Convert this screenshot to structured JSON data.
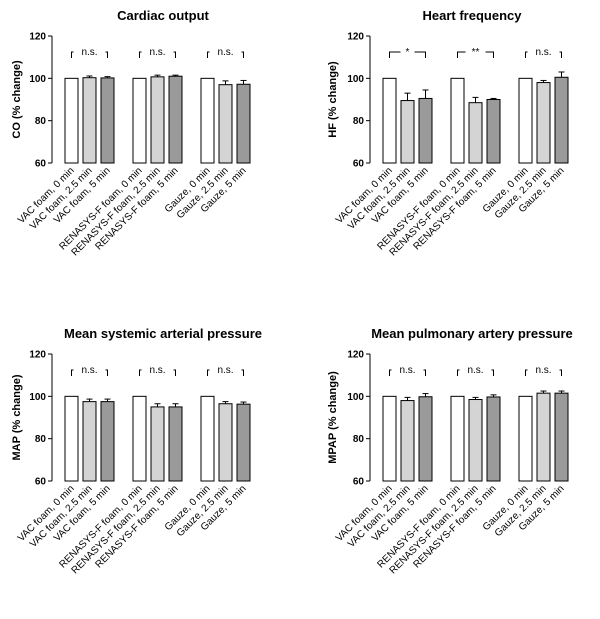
{
  "chart_data": [
    {
      "type": "bar",
      "title": "Cardiac output",
      "ylabel": "CO (% change)",
      "ylim": [
        60,
        120
      ],
      "yticks": [
        "60",
        "80",
        "100",
        "120"
      ],
      "categories": [
        "VAC foam, 0 min",
        "VAC foam, 2.5 min",
        "VAC foam, 5 min",
        "RENASYS-F foam, 0 min",
        "RENASYS-F foam, 2.5 min",
        "RENASYS-F foam, 5 min",
        "Gauze, 0 min",
        "Gauze, 2.5 min",
        "Gauze, 5 min"
      ],
      "values": [
        100,
        100.3,
        100.2,
        100,
        100.7,
        101,
        100,
        97,
        97.2
      ],
      "errors": [
        0,
        0.8,
        0.6,
        0,
        0.8,
        0.5,
        0,
        1.8,
        1.8
      ],
      "bar_colors": [
        "#ffffff",
        "#d4d4d4",
        "#9a9a9a",
        "#ffffff",
        "#d4d4d4",
        "#9a9a9a",
        "#ffffff",
        "#d4d4d4",
        "#9a9a9a"
      ],
      "annotations": [
        "n.s.",
        "n.s.",
        "n.s."
      ]
    },
    {
      "type": "bar",
      "title": "Heart frequency",
      "ylabel": "HF (% change)",
      "ylim": [
        60,
        120
      ],
      "yticks": [
        "60",
        "80",
        "100",
        "120"
      ],
      "categories": [
        "VAC foam, 0 min",
        "VAC foam, 2.5 min",
        "VAC foam, 5 min",
        "RENASYS-F foam, 0 min",
        "RENASYS-F foam, 2.5 min",
        "RENASYS-F foam, 5 min",
        "Gauze, 0 min",
        "Gauze, 2.5 min",
        "Gauze, 5 min"
      ],
      "values": [
        100,
        89.5,
        90.5,
        100,
        88.5,
        90,
        100,
        98,
        100.5
      ],
      "errors": [
        0,
        3.5,
        4,
        0,
        2.5,
        0.5,
        0,
        1,
        2.5
      ],
      "bar_colors": [
        "#ffffff",
        "#d4d4d4",
        "#9a9a9a",
        "#ffffff",
        "#d4d4d4",
        "#9a9a9a",
        "#ffffff",
        "#d4d4d4",
        "#9a9a9a"
      ],
      "annotations": [
        "*",
        "**",
        "n.s."
      ]
    },
    {
      "type": "bar",
      "title": "Mean systemic arterial pressure",
      "ylabel": "MAP (% change)",
      "ylim": [
        60,
        120
      ],
      "yticks": [
        "60",
        "80",
        "100",
        "120"
      ],
      "categories": [
        "VAC foam, 0 min",
        "VAC foam, 2.5 min",
        "VAC foam, 5 min",
        "RENASYS-F foam, 0 min",
        "RENASYS-F foam, 2.5 min",
        "RENASYS-F foam, 5 min",
        "Gauze, 0 min",
        "Gauze, 2.5 min",
        "Gauze, 5 min"
      ],
      "values": [
        100,
        97.5,
        97.5,
        100,
        95,
        95,
        100,
        96.5,
        96.3
      ],
      "errors": [
        0,
        1.2,
        1.2,
        0,
        1.5,
        1.5,
        0,
        1,
        1
      ],
      "bar_colors": [
        "#ffffff",
        "#d4d4d4",
        "#9a9a9a",
        "#ffffff",
        "#d4d4d4",
        "#9a9a9a",
        "#ffffff",
        "#d4d4d4",
        "#9a9a9a"
      ],
      "annotations": [
        "n.s.",
        "n.s.",
        "n.s."
      ]
    },
    {
      "type": "bar",
      "title": "Mean pulmonary artery pressure",
      "ylabel": "MPAP (% change)",
      "ylim": [
        60,
        120
      ],
      "yticks": [
        "60",
        "80",
        "100",
        "120"
      ],
      "categories": [
        "VAC foam, 0 min",
        "VAC foam, 2.5 min",
        "VAC foam, 5 min",
        "RENASYS-F foam, 0 min",
        "RENASYS-F foam, 2.5 min",
        "RENASYS-F foam, 5 min",
        "Gauze, 0 min",
        "Gauze, 2.5 min",
        "Gauze, 5 min"
      ],
      "values": [
        100,
        98,
        99.8,
        100,
        98.5,
        99.7,
        100,
        101.5,
        101.5
      ],
      "errors": [
        0,
        1.5,
        1.5,
        0,
        1,
        1,
        0,
        1,
        1
      ],
      "bar_colors": [
        "#ffffff",
        "#d4d4d4",
        "#9a9a9a",
        "#ffffff",
        "#d4d4d4",
        "#9a9a9a",
        "#ffffff",
        "#d4d4d4",
        "#9a9a9a"
      ],
      "annotations": [
        "n.s.",
        "n.s.",
        "n.s."
      ]
    }
  ]
}
